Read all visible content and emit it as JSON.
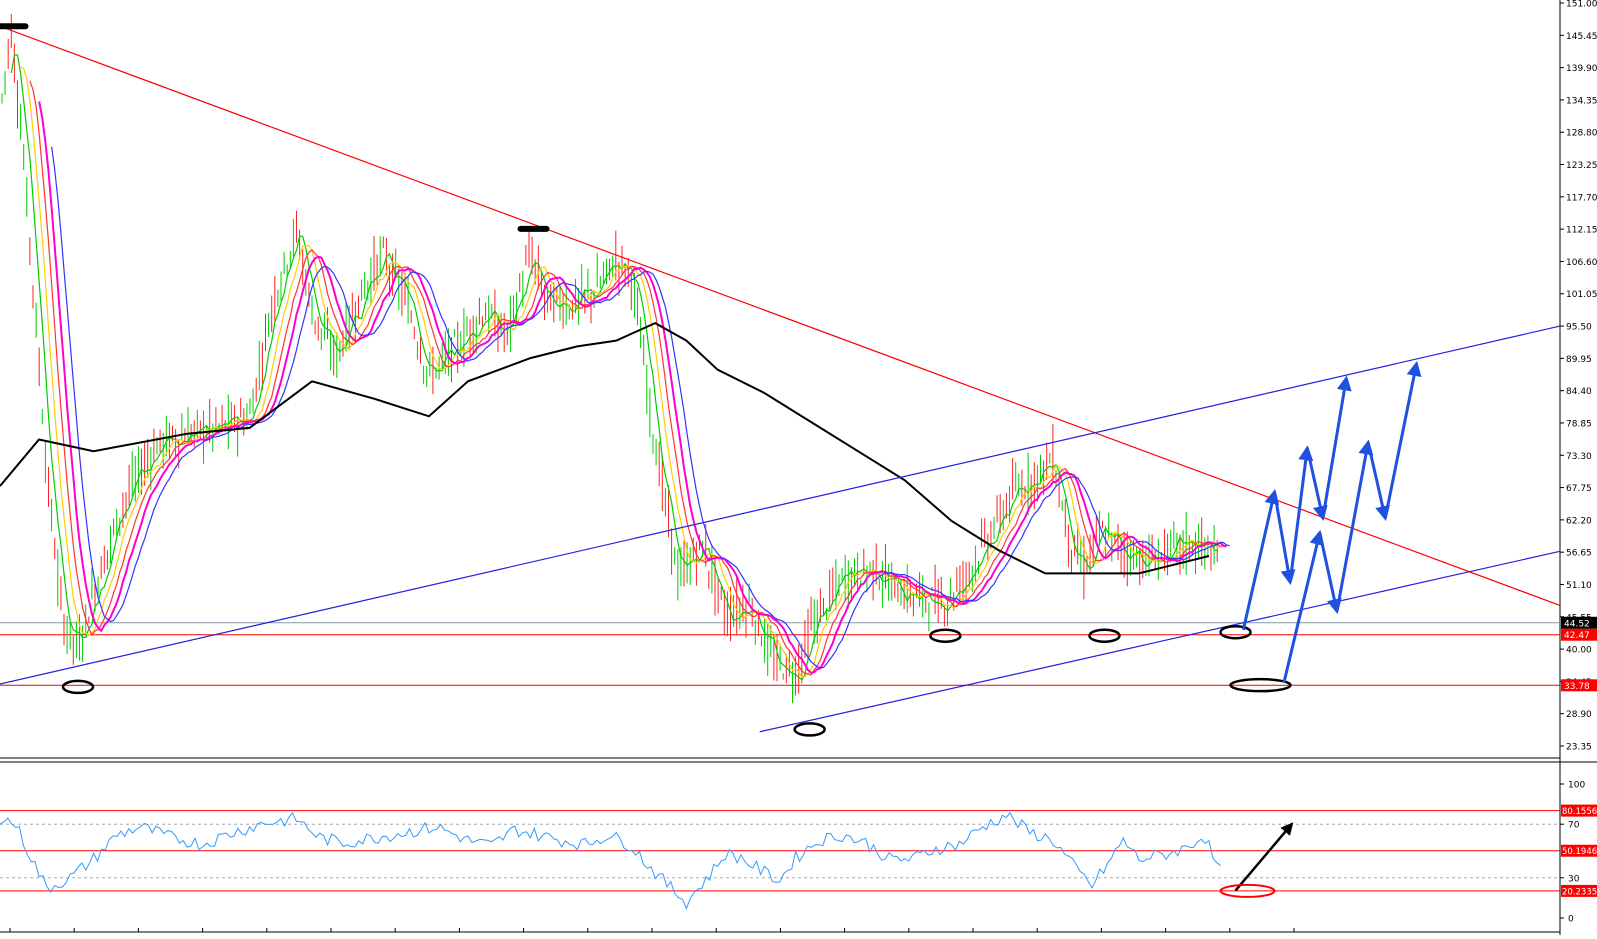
{
  "chart_data": [
    {
      "type": "candlestick",
      "title": "",
      "y_axis": {
        "min": 23.35,
        "max": 151.0,
        "ticks": [
          "151.00",
          "145.45",
          "139.90",
          "134.35",
          "128.80",
          "123.25",
          "117.70",
          "112.15",
          "106.60",
          "101.05",
          "95.50",
          "89.95",
          "84.40",
          "78.85",
          "73.30",
          "67.75",
          "62.20",
          "56.65",
          "51.10",
          "45.55",
          "40.00",
          "34.45",
          "28.90",
          "23.35"
        ]
      },
      "price_tags": [
        {
          "label": "44.52",
          "value": 44.52,
          "bg": "#000000"
        },
        {
          "label": "42.47",
          "value": 42.47,
          "bg": "#ff0000"
        },
        {
          "label": "33.78",
          "value": 33.78,
          "bg": "#ff0000"
        }
      ],
      "horizontal_levels": [
        {
          "value": 44.52,
          "color": "#8899aa"
        },
        {
          "value": 42.47,
          "color": "#ff0000"
        },
        {
          "value": 33.78,
          "color": "#ff0000"
        }
      ],
      "trendlines": [
        {
          "color": "#ff0000",
          "points": [
            [
              0.0,
              147.0
            ],
            [
              1.0,
              47.5
            ]
          ]
        },
        {
          "color": "#2020dd",
          "points": [
            [
              0.0,
              34.0
            ],
            [
              1.0,
              95.5
            ]
          ]
        },
        {
          "color": "#2020dd",
          "points": [
            [
              0.487,
              25.8
            ],
            [
              1.0,
              56.8
            ]
          ]
        }
      ],
      "moving_averages": [
        {
          "name": "MA-long",
          "color": "#000000"
        },
        {
          "name": "MA-fast-1",
          "color": "#00cc00"
        },
        {
          "name": "MA-fast-2",
          "color": "#ffcc00"
        },
        {
          "name": "MA-fast-3",
          "color": "#ff3333"
        },
        {
          "name": "MA-fast-4",
          "color": "#ff00cc"
        },
        {
          "name": "MA-fast-5",
          "color": "#3333ff"
        }
      ],
      "price_path": [
        [
          0.0,
          132
        ],
        [
          0.007,
          147
        ],
        [
          0.014,
          128
        ],
        [
          0.022,
          100
        ],
        [
          0.03,
          70
        ],
        [
          0.04,
          45
        ],
        [
          0.05,
          40
        ],
        [
          0.06,
          50
        ],
        [
          0.08,
          66
        ],
        [
          0.1,
          75
        ],
        [
          0.12,
          77
        ],
        [
          0.14,
          78
        ],
        [
          0.16,
          80
        ],
        [
          0.175,
          100
        ],
        [
          0.19,
          112
        ],
        [
          0.2,
          98
        ],
        [
          0.215,
          90
        ],
        [
          0.23,
          100
        ],
        [
          0.245,
          108
        ],
        [
          0.26,
          100
        ],
        [
          0.275,
          87
        ],
        [
          0.29,
          91
        ],
        [
          0.31,
          98
        ],
        [
          0.325,
          94
        ],
        [
          0.34,
          108
        ],
        [
          0.35,
          100
        ],
        [
          0.365,
          99
        ],
        [
          0.38,
          101
        ],
        [
          0.395,
          107
        ],
        [
          0.405,
          104
        ],
        [
          0.42,
          75
        ],
        [
          0.435,
          52
        ],
        [
          0.45,
          58
        ],
        [
          0.465,
          46
        ],
        [
          0.48,
          48
        ],
        [
          0.495,
          38
        ],
        [
          0.51,
          36
        ],
        [
          0.52,
          44
        ],
        [
          0.54,
          52
        ],
        [
          0.56,
          54
        ],
        [
          0.575,
          50
        ],
        [
          0.59,
          49
        ],
        [
          0.605,
          48
        ],
        [
          0.62,
          53
        ],
        [
          0.635,
          60
        ],
        [
          0.65,
          67
        ],
        [
          0.665,
          70
        ],
        [
          0.675,
          73
        ],
        [
          0.685,
          59
        ],
        [
          0.695,
          54
        ],
        [
          0.705,
          60
        ],
        [
          0.72,
          57
        ],
        [
          0.735,
          55
        ],
        [
          0.75,
          57
        ],
        [
          0.765,
          58
        ],
        [
          0.775,
          57
        ],
        [
          0.784,
          53
        ]
      ],
      "ma_long_path": [
        [
          0.0,
          68
        ],
        [
          0.025,
          76
        ],
        [
          0.06,
          74
        ],
        [
          0.12,
          77
        ],
        [
          0.16,
          78
        ],
        [
          0.2,
          86
        ],
        [
          0.24,
          83
        ],
        [
          0.275,
          80
        ],
        [
          0.3,
          86
        ],
        [
          0.34,
          90
        ],
        [
          0.37,
          92
        ],
        [
          0.395,
          93
        ],
        [
          0.42,
          96
        ],
        [
          0.44,
          93
        ],
        [
          0.46,
          88
        ],
        [
          0.49,
          84
        ],
        [
          0.52,
          79
        ],
        [
          0.55,
          74
        ],
        [
          0.58,
          69
        ],
        [
          0.61,
          62
        ],
        [
          0.64,
          57
        ],
        [
          0.67,
          53
        ],
        [
          0.7,
          53
        ],
        [
          0.73,
          53
        ],
        [
          0.76,
          55
        ],
        [
          0.775,
          56
        ]
      ],
      "swing_markers": [
        {
          "shape": "dash",
          "at": [
            0.008,
            147.0
          ]
        },
        {
          "shape": "dash",
          "at": [
            0.342,
            112.2
          ]
        },
        {
          "shape": "ellipse",
          "at": [
            0.05,
            33.5
          ]
        },
        {
          "shape": "ellipse",
          "at": [
            0.519,
            26.2
          ]
        },
        {
          "shape": "ellipse",
          "at": [
            0.606,
            42.3
          ]
        },
        {
          "shape": "ellipse",
          "at": [
            0.708,
            42.3
          ]
        },
        {
          "shape": "ellipse",
          "at": [
            0.792,
            42.9
          ]
        },
        {
          "shape": "wide-ellipse",
          "at": [
            0.808,
            33.8
          ]
        }
      ],
      "projection_paths": [
        {
          "color": "#2050e0",
          "points": [
            [
              0.797,
              43.3
            ],
            [
              0.817,
              67
            ],
            [
              0.827,
              51.5
            ],
            [
              0.838,
              74.5
            ],
            [
              0.848,
              62.5
            ],
            [
              0.863,
              86.5
            ]
          ]
        },
        {
          "color": "#2050e0",
          "points": [
            [
              0.823,
              34.2
            ],
            [
              0.846,
              60
            ],
            [
              0.857,
              46.5
            ],
            [
              0.877,
              75.5
            ],
            [
              0.888,
              62.5
            ],
            [
              0.908,
              89
            ]
          ]
        }
      ]
    },
    {
      "type": "line",
      "title": "",
      "y_axis": {
        "min": 0,
        "max": 100,
        "ticks": [
          "100",
          "70",
          "30",
          "0"
        ]
      },
      "levels": [
        {
          "label": "80.1556",
          "value": 80.1556,
          "color": "#ff0000"
        },
        {
          "label": "50.1946",
          "value": 50.1946,
          "color": "#ff0000"
        },
        {
          "label": "20.2335",
          "value": 20.2335,
          "color": "#ff0000"
        }
      ],
      "dashed_levels": [
        70,
        30
      ],
      "series": [
        {
          "color": "#3399ff",
          "path": [
            [
              0.0,
              75
            ],
            [
              0.01,
              70
            ],
            [
              0.02,
              45
            ],
            [
              0.03,
              22
            ],
            [
              0.045,
              30
            ],
            [
              0.06,
              44
            ],
            [
              0.075,
              62
            ],
            [
              0.09,
              68
            ],
            [
              0.11,
              60
            ],
            [
              0.13,
              55
            ],
            [
              0.15,
              64
            ],
            [
              0.17,
              71
            ],
            [
              0.19,
              74
            ],
            [
              0.205,
              60
            ],
            [
              0.22,
              56
            ],
            [
              0.24,
              60
            ],
            [
              0.26,
              64
            ],
            [
              0.28,
              68
            ],
            [
              0.3,
              58
            ],
            [
              0.315,
              54
            ],
            [
              0.33,
              66
            ],
            [
              0.345,
              62
            ],
            [
              0.36,
              58
            ],
            [
              0.375,
              55
            ],
            [
              0.39,
              62
            ],
            [
              0.405,
              54
            ],
            [
              0.415,
              40
            ],
            [
              0.425,
              28
            ],
            [
              0.44,
              12
            ],
            [
              0.455,
              32
            ],
            [
              0.465,
              48
            ],
            [
              0.475,
              45
            ],
            [
              0.49,
              34
            ],
            [
              0.5,
              28
            ],
            [
              0.51,
              45
            ],
            [
              0.525,
              58
            ],
            [
              0.54,
              62
            ],
            [
              0.555,
              56
            ],
            [
              0.57,
              44
            ],
            [
              0.585,
              44
            ],
            [
              0.6,
              52
            ],
            [
              0.615,
              55
            ],
            [
              0.63,
              68
            ],
            [
              0.645,
              77
            ],
            [
              0.66,
              64
            ],
            [
              0.675,
              58
            ],
            [
              0.69,
              36
            ],
            [
              0.7,
              24
            ],
            [
              0.71,
              40
            ],
            [
              0.72,
              58
            ],
            [
              0.73,
              44
            ],
            [
              0.745,
              47
            ],
            [
              0.76,
              52
            ],
            [
              0.772,
              62
            ],
            [
              0.78,
              38
            ],
            [
              0.784,
              32
            ]
          ]
        }
      ],
      "projection_arrow": {
        "color": "#000000",
        "points": [
          [
            0.792,
            20.5
          ],
          [
            0.828,
            70
          ]
        ]
      },
      "marker": {
        "shape": "ellipse",
        "at": [
          0.792,
          20.2
        ]
      }
    }
  ]
}
